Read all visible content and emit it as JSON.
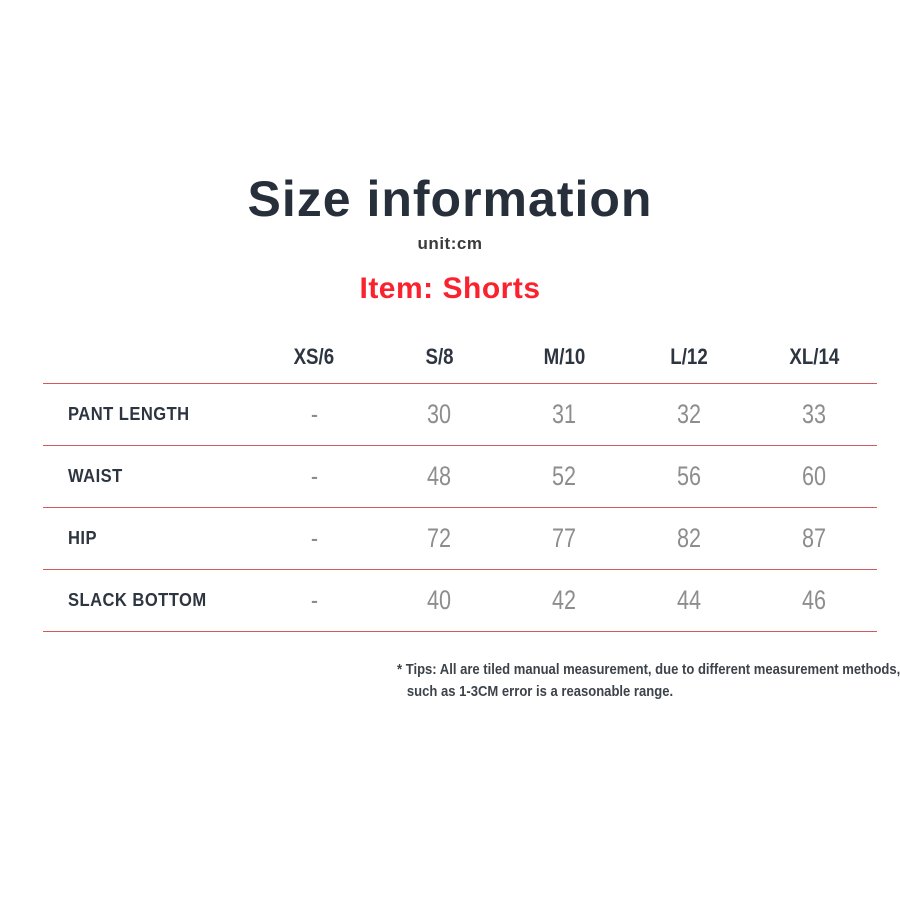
{
  "header": {
    "title": "Size information",
    "unit": "unit:cm",
    "item_label": "Item: Shorts"
  },
  "colors": {
    "title_navy": "#272f3b",
    "item_red": "#fa222e",
    "divider_salmon": "#d6595e",
    "value_gray": "#8d8d8d",
    "tips_gray": "#3d434a"
  },
  "table": {
    "columns": [
      "XS/6",
      "S/8",
      "M/10",
      "L/12",
      "XL/14"
    ],
    "rows": [
      {
        "label": "PANT LENGTH",
        "values": [
          "-",
          "30",
          "31",
          "32",
          "33"
        ]
      },
      {
        "label": "WAIST",
        "values": [
          "-",
          "48",
          "52",
          "56",
          "60"
        ]
      },
      {
        "label": "HIP",
        "values": [
          "-",
          "72",
          "77",
          "82",
          "87"
        ]
      },
      {
        "label": "SLACK BOTTOM",
        "values": [
          "-",
          "40",
          "42",
          "44",
          "46"
        ]
      }
    ]
  },
  "tips": {
    "line1": "* Tips: All are tiled manual measurement, due to different measurement methods,",
    "line2": "such as 1-3CM error is a reasonable range."
  },
  "chart_data": {
    "type": "table",
    "title": "Size information",
    "subtitle": "unit:cm",
    "item": "Shorts",
    "unit": "cm",
    "columns": [
      "XS/6",
      "S/8",
      "M/10",
      "L/12",
      "XL/14"
    ],
    "row_labels": [
      "PANT LENGTH",
      "WAIST",
      "HIP",
      "SLACK BOTTOM"
    ],
    "rows": [
      {
        "label": "PANT LENGTH",
        "values": [
          null,
          30,
          31,
          32,
          33
        ]
      },
      {
        "label": "WAIST",
        "values": [
          null,
          48,
          52,
          56,
          60
        ]
      },
      {
        "label": "HIP",
        "values": [
          null,
          72,
          77,
          82,
          87
        ]
      },
      {
        "label": "SLACK BOTTOM",
        "values": [
          null,
          40,
          42,
          44,
          46
        ]
      }
    ],
    "missing_value_marker": "-",
    "footnote": "* Tips: All are tiled manual measurement, due to different measurement methods, such as 1-3CM error is a reasonable range."
  }
}
